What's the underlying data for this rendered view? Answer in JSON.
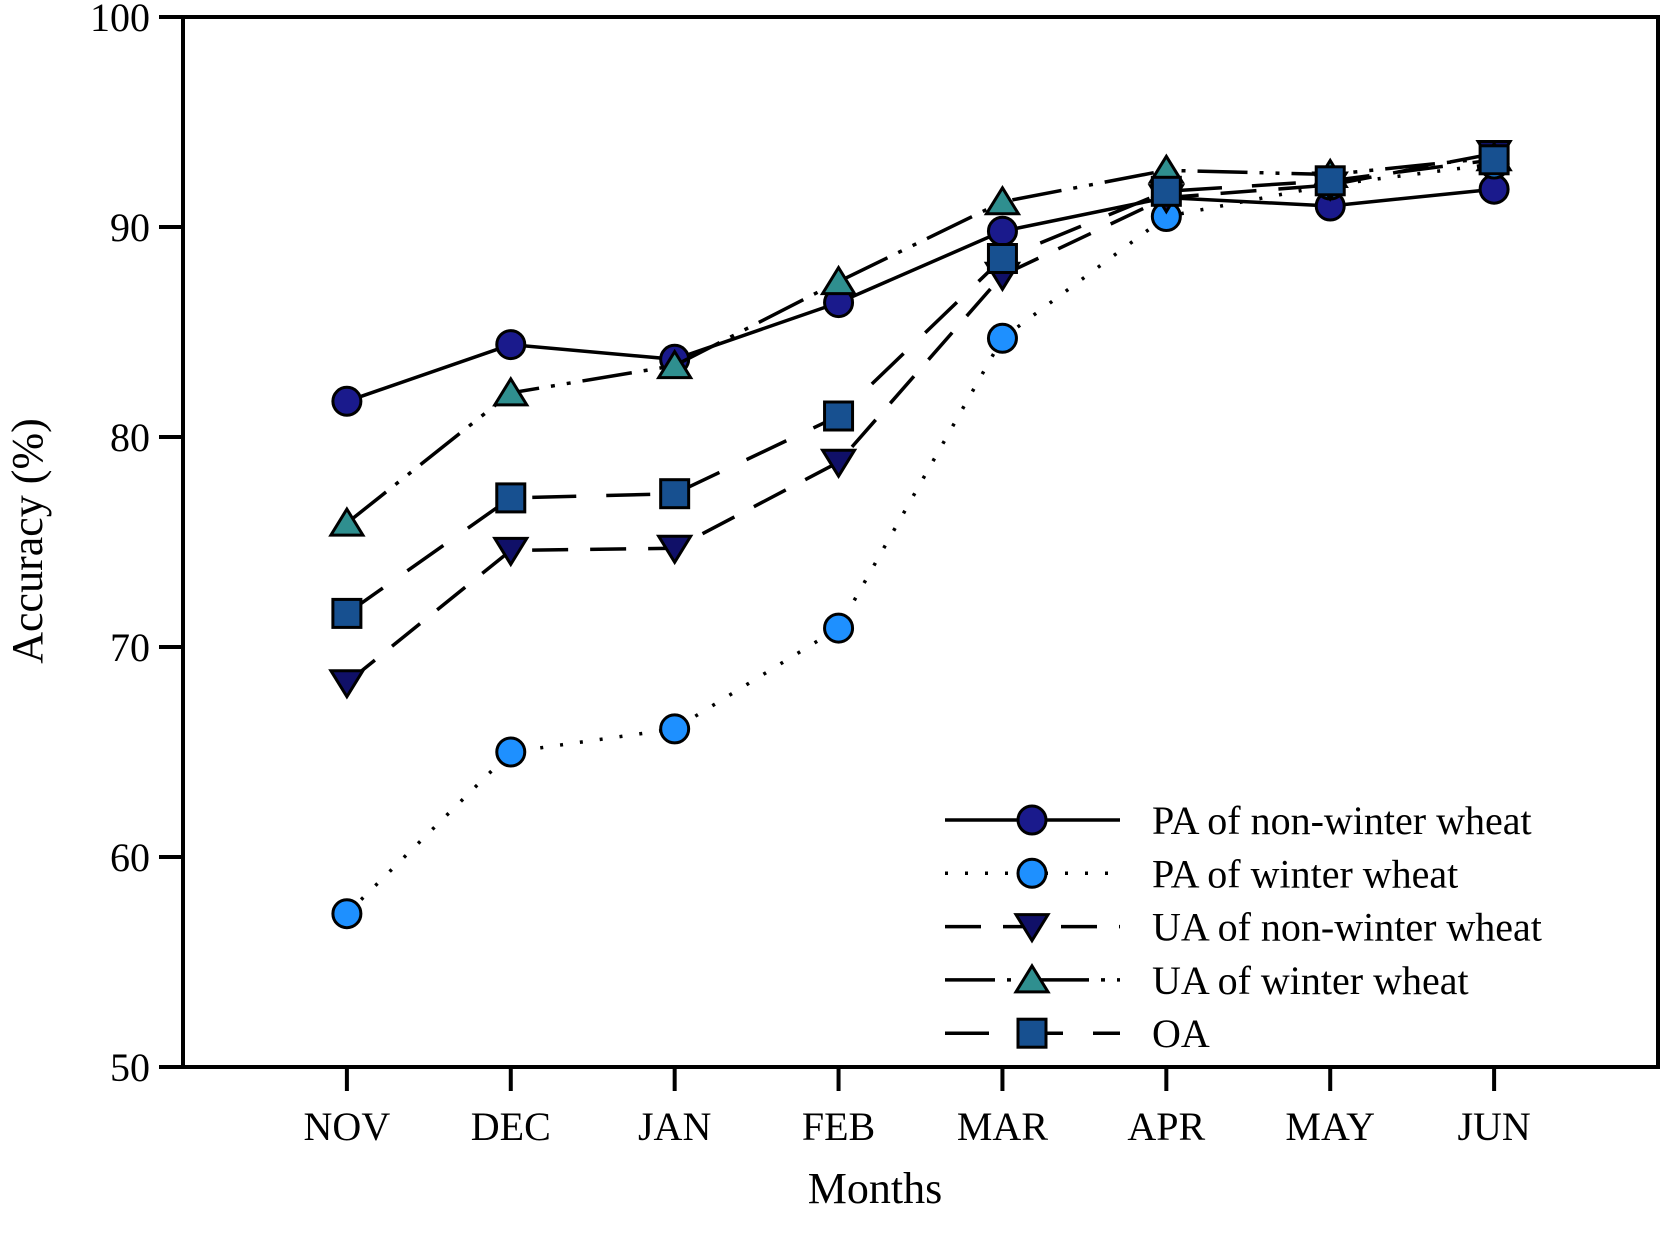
{
  "figure": {
    "background": "#ffffff",
    "axis_color": "#000000",
    "ylabel": "Accuracy (%)",
    "xlabel": "Months"
  },
  "chart_data": {
    "type": "line",
    "title": "",
    "xlabel": "Months",
    "ylabel": "Accuracy (%)",
    "categories": [
      "NOV",
      "DEC",
      "JAN",
      "FEB",
      "MAR",
      "APR",
      "MAY",
      "JUN"
    ],
    "ylim": [
      50,
      100
    ],
    "y_ticks": [
      100,
      90,
      80,
      70,
      60,
      50
    ],
    "grid": false,
    "legend_position": "inside-lower-right",
    "series": [
      {
        "name": "PA of non-winter wheat",
        "values": [
          81.7,
          84.4,
          83.7,
          86.4,
          89.8,
          91.4,
          91.0,
          91.8
        ],
        "marker": "circle",
        "marker_color": "#1a1a8c",
        "line_style": "solid",
        "line_color": "#000000"
      },
      {
        "name": "PA of winter wheat",
        "values": [
          57.3,
          65.0,
          66.1,
          70.9,
          84.7,
          90.5,
          92.0,
          93.0
        ],
        "marker": "circle",
        "marker_color": "#1e90ff",
        "line_style": "dotted",
        "line_color": "#000000"
      },
      {
        "name": "UA of non-winter wheat",
        "values": [
          68.3,
          74.6,
          74.7,
          78.8,
          87.7,
          91.4,
          92.0,
          93.5
        ],
        "marker": "triangle-down",
        "marker_color": "#101068",
        "line_style": "dashed",
        "line_color": "#000000"
      },
      {
        "name": "UA of winter wheat",
        "values": [
          75.9,
          82.1,
          83.4,
          87.4,
          91.2,
          92.7,
          92.5,
          93.3
        ],
        "marker": "triangle-up",
        "marker_color": "#2f8f8f",
        "line_style": "dash-dot-dot",
        "line_color": "#000000"
      },
      {
        "name": "OA",
        "values": [
          71.6,
          77.1,
          77.3,
          81.0,
          88.5,
          91.7,
          92.2,
          93.2
        ],
        "marker": "square",
        "marker_color": "#175090",
        "line_style": "long-dash",
        "line_color": "#000000"
      }
    ]
  }
}
